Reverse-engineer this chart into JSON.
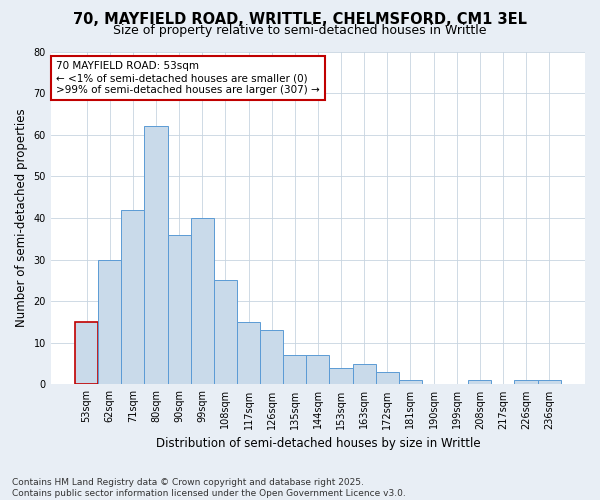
{
  "title_line1": "70, MAYFIELD ROAD, WRITTLE, CHELMSFORD, CM1 3EL",
  "title_line2": "Size of property relative to semi-detached houses in Writtle",
  "xlabel": "Distribution of semi-detached houses by size in Writtle",
  "ylabel": "Number of semi-detached properties",
  "categories": [
    "53sqm",
    "62sqm",
    "71sqm",
    "80sqm",
    "90sqm",
    "99sqm",
    "108sqm",
    "117sqm",
    "126sqm",
    "135sqm",
    "144sqm",
    "153sqm",
    "163sqm",
    "172sqm",
    "181sqm",
    "190sqm",
    "199sqm",
    "208sqm",
    "217sqm",
    "226sqm",
    "236sqm"
  ],
  "values": [
    15,
    30,
    42,
    62,
    36,
    40,
    25,
    15,
    13,
    7,
    7,
    4,
    5,
    3,
    1,
    0,
    0,
    1,
    0,
    1,
    1
  ],
  "bar_fill_color": "#c9daea",
  "bar_edge_color": "#5b9bd5",
  "highlight_edge_color": "#c00000",
  "annotation_title": "70 MAYFIELD ROAD: 53sqm",
  "annotation_line2": "← <1% of semi-detached houses are smaller (0)",
  "annotation_line3": ">99% of semi-detached houses are larger (307) →",
  "annotation_box_edge": "#c00000",
  "ylim": [
    0,
    80
  ],
  "yticks": [
    0,
    10,
    20,
    30,
    40,
    50,
    60,
    70,
    80
  ],
  "fig_bg_color": "#e8eef5",
  "plot_bg_color": "#ffffff",
  "grid_color": "#c8d4e0",
  "footer": "Contains HM Land Registry data © Crown copyright and database right 2025.\nContains public sector information licensed under the Open Government Licence v3.0.",
  "title_fontsize": 10.5,
  "subtitle_fontsize": 9,
  "axis_label_fontsize": 8.5,
  "tick_fontsize": 7,
  "footer_fontsize": 6.5,
  "annotation_fontsize": 7.5
}
